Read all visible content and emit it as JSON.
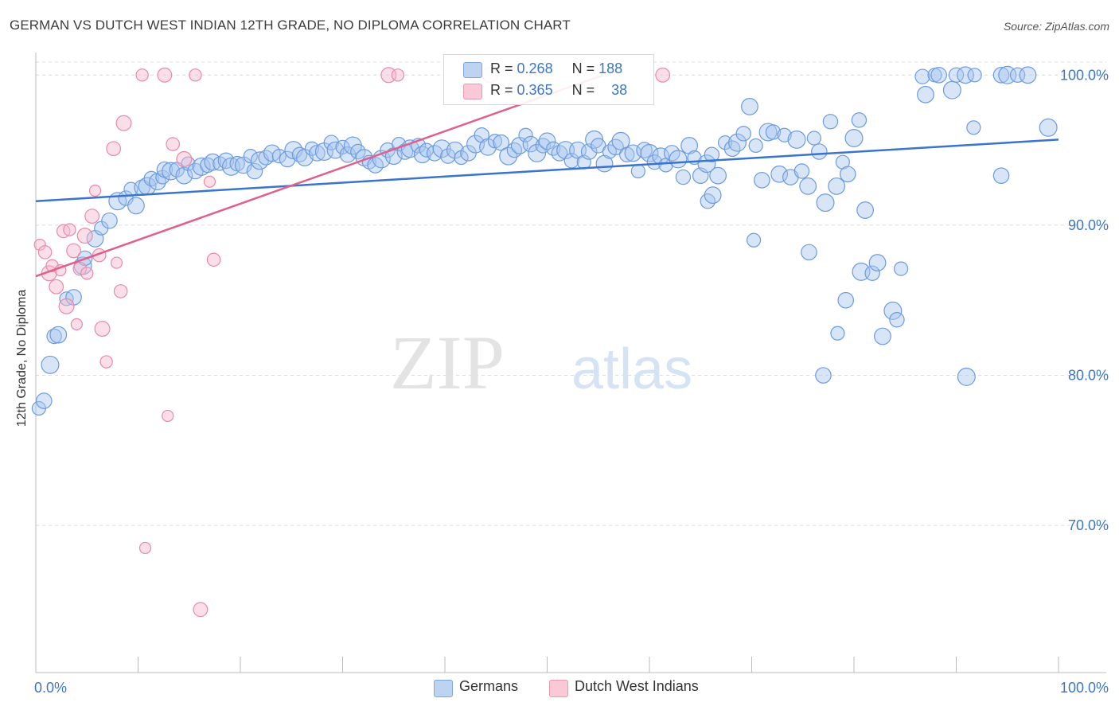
{
  "header": {
    "title": "GERMAN VS DUTCH WEST INDIAN 12TH GRADE, NO DIPLOMA CORRELATION CHART",
    "source": "Source: ZipAtlas.com"
  },
  "watermark": {
    "zip": "ZIP",
    "atlas": "atlas"
  },
  "legend": {
    "rows": [
      {
        "r_label": "R =",
        "r_value": "0.268",
        "n_label": "N =",
        "n_value": "188",
        "color": "#a9c6ee"
      },
      {
        "r_label": "R =",
        "r_value": "0.365",
        "n_label": "N =",
        "n_value": "38",
        "color": "#f6b9cc"
      }
    ]
  },
  "bottom_legend": {
    "germans": "Germans",
    "dutch": "Dutch West Indians"
  },
  "colors": {
    "blue_fill": "#a9c6ee",
    "blue_stroke": "#6b9be0",
    "blue_line": "#3a74cc",
    "pink_fill": "#f6b9cc",
    "pink_stroke": "#e88aa8",
    "pink_line": "#e0608b",
    "axis_text": "#3d76c4"
  },
  "chart_data": {
    "type": "scatter",
    "title": "GERMAN VS DUTCH WEST INDIAN 12TH GRADE, NO DIPLOMA CORRELATION CHART",
    "xlabel": "",
    "ylabel": "12th Grade, No Diploma",
    "xlim": [
      0,
      100
    ],
    "ylim": [
      60.2,
      101.5
    ],
    "x_tick_labels": [
      "0.0%",
      "100.0%"
    ],
    "y_ticks": [
      70,
      80,
      90,
      100
    ],
    "y_tick_labels": [
      "70.0%",
      "80.0%",
      "90.0%",
      "100.0%"
    ],
    "grid": true,
    "legend_position": "top-center",
    "series": [
      {
        "name": "Germans",
        "r": 0.268,
        "n": 188,
        "trend": [
          [
            0,
            91.6
          ],
          [
            100,
            95.7
          ]
        ],
        "points": [
          [
            0.3,
            77.8
          ],
          [
            0.8,
            78.3
          ],
          [
            1.4,
            80.7
          ],
          [
            1.8,
            82.6
          ],
          [
            2.2,
            82.7
          ],
          [
            3.0,
            85.1
          ],
          [
            3.7,
            85.2
          ],
          [
            4.6,
            87.3
          ],
          [
            4.8,
            87.8
          ],
          [
            5.8,
            89.1
          ],
          [
            6.4,
            89.8
          ],
          [
            7.2,
            90.3
          ],
          [
            8.0,
            91.6
          ],
          [
            8.8,
            91.8
          ],
          [
            9.8,
            91.3
          ],
          [
            9.3,
            92.4
          ],
          [
            10.4,
            92.5
          ],
          [
            10.9,
            92.6
          ],
          [
            11.3,
            93.1
          ],
          [
            11.9,
            92.9
          ],
          [
            12.4,
            93.2
          ],
          [
            12.6,
            93.7
          ],
          [
            13.2,
            93.6
          ],
          [
            13.8,
            93.7
          ],
          [
            14.5,
            93.3
          ],
          [
            14.9,
            94.1
          ],
          [
            15.6,
            93.6
          ],
          [
            16.2,
            93.9
          ],
          [
            16.8,
            94.0
          ],
          [
            17.3,
            94.2
          ],
          [
            18.0,
            94.1
          ],
          [
            18.6,
            94.3
          ],
          [
            19.1,
            93.9
          ],
          [
            19.7,
            94.1
          ],
          [
            20.3,
            94.0
          ],
          [
            21.0,
            94.6
          ],
          [
            21.4,
            93.6
          ],
          [
            21.9,
            94.3
          ],
          [
            22.5,
            94.5
          ],
          [
            23.1,
            94.8
          ],
          [
            23.8,
            94.6
          ],
          [
            24.6,
            94.4
          ],
          [
            25.2,
            95.0
          ],
          [
            25.8,
            94.7
          ],
          [
            26.3,
            94.5
          ],
          [
            27.0,
            95.1
          ],
          [
            27.5,
            94.8
          ],
          [
            28.2,
            94.9
          ],
          [
            28.9,
            95.5
          ],
          [
            29.3,
            95.0
          ],
          [
            30.0,
            95.2
          ],
          [
            30.5,
            94.7
          ],
          [
            31.0,
            95.3
          ],
          [
            31.5,
            94.9
          ],
          [
            32.1,
            94.5
          ],
          [
            32.6,
            94.2
          ],
          [
            33.2,
            94.0
          ],
          [
            33.8,
            94.4
          ],
          [
            34.4,
            95.0
          ],
          [
            35.0,
            94.6
          ],
          [
            35.5,
            95.4
          ],
          [
            36.1,
            94.9
          ],
          [
            36.6,
            95.1
          ],
          [
            37.4,
            95.3
          ],
          [
            37.8,
            94.7
          ],
          [
            38.2,
            95.0
          ],
          [
            39.0,
            94.8
          ],
          [
            39.7,
            95.1
          ],
          [
            40.3,
            94.6
          ],
          [
            41.0,
            95.0
          ],
          [
            41.6,
            94.5
          ],
          [
            42.3,
            94.8
          ],
          [
            43.0,
            95.4
          ],
          [
            43.6,
            96.0
          ],
          [
            44.2,
            95.2
          ],
          [
            44.9,
            95.6
          ],
          [
            45.5,
            95.5
          ],
          [
            46.2,
            94.6
          ],
          [
            46.8,
            95.0
          ],
          [
            47.3,
            95.3
          ],
          [
            47.9,
            96.0
          ],
          [
            48.4,
            95.4
          ],
          [
            49.0,
            94.8
          ],
          [
            49.6,
            95.3
          ],
          [
            50.0,
            95.6
          ],
          [
            50.6,
            95.1
          ],
          [
            51.2,
            94.8
          ],
          [
            51.8,
            95.0
          ],
          [
            52.4,
            94.3
          ],
          [
            53.0,
            95.0
          ],
          [
            53.6,
            94.2
          ],
          [
            54.1,
            94.9
          ],
          [
            54.6,
            95.7
          ],
          [
            55.0,
            95.3
          ],
          [
            55.6,
            94.1
          ],
          [
            56.1,
            94.9
          ],
          [
            56.7,
            95.2
          ],
          [
            57.2,
            95.6
          ],
          [
            57.8,
            94.7
          ],
          [
            58.4,
            94.8
          ],
          [
            58.9,
            93.6
          ],
          [
            59.5,
            95.0
          ],
          [
            60.0,
            94.8
          ],
          [
            60.5,
            94.2
          ],
          [
            61.1,
            94.6
          ],
          [
            61.6,
            94.0
          ],
          [
            62.2,
            94.8
          ],
          [
            62.8,
            94.4
          ],
          [
            63.3,
            93.2
          ],
          [
            63.9,
            95.3
          ],
          [
            64.4,
            94.5
          ],
          [
            65.0,
            93.3
          ],
          [
            65.6,
            94.1
          ],
          [
            66.1,
            94.7
          ],
          [
            66.7,
            93.3
          ],
          [
            67.4,
            95.5
          ],
          [
            68.1,
            95.1
          ],
          [
            68.6,
            95.5
          ],
          [
            69.2,
            96.1
          ],
          [
            69.8,
            97.9
          ],
          [
            70.4,
            95.3
          ],
          [
            71.0,
            93.0
          ],
          [
            71.6,
            96.2
          ],
          [
            72.1,
            96.2
          ],
          [
            72.7,
            93.4
          ],
          [
            73.2,
            96.0
          ],
          [
            73.8,
            93.2
          ],
          [
            74.4,
            95.7
          ],
          [
            74.9,
            93.6
          ],
          [
            75.5,
            92.6
          ],
          [
            76.1,
            95.8
          ],
          [
            76.6,
            94.9
          ],
          [
            77.2,
            91.5
          ],
          [
            77.7,
            96.9
          ],
          [
            78.3,
            92.6
          ],
          [
            78.9,
            94.2
          ],
          [
            79.4,
            93.4
          ],
          [
            80.0,
            95.8
          ],
          [
            80.5,
            97.0
          ],
          [
            81.1,
            91.0
          ],
          [
            70.2,
            89.0
          ],
          [
            75.6,
            88.2
          ],
          [
            80.7,
            86.9
          ],
          [
            81.8,
            86.8
          ],
          [
            82.3,
            87.5
          ],
          [
            84.6,
            87.1
          ],
          [
            79.2,
            85.0
          ],
          [
            83.8,
            84.3
          ],
          [
            84.2,
            83.7
          ],
          [
            82.8,
            82.6
          ],
          [
            78.4,
            82.8
          ],
          [
            77.0,
            80.0
          ],
          [
            91.0,
            79.9
          ],
          [
            86.7,
            99.9
          ],
          [
            87.0,
            98.7
          ],
          [
            87.9,
            100.0
          ],
          [
            88.3,
            100.0
          ],
          [
            89.6,
            99.0
          ],
          [
            90.0,
            100.0
          ],
          [
            90.9,
            100.0
          ],
          [
            91.8,
            100.0
          ],
          [
            94.4,
            100.0
          ],
          [
            95.0,
            100.0
          ],
          [
            96.0,
            100.0
          ],
          [
            97.0,
            100.0
          ],
          [
            91.7,
            96.5
          ],
          [
            94.4,
            93.3
          ],
          [
            99.0,
            96.5
          ],
          [
            65.7,
            91.6
          ],
          [
            66.2,
            92.0
          ]
        ]
      },
      {
        "name": "Dutch West Indians",
        "r": 0.365,
        "n": 38,
        "trend": [
          [
            0,
            86.6
          ],
          [
            55.5,
            100.0
          ]
        ],
        "points": [
          [
            0.4,
            88.7
          ],
          [
            0.9,
            88.2
          ],
          [
            1.3,
            86.8
          ],
          [
            1.6,
            87.3
          ],
          [
            2.0,
            85.9
          ],
          [
            2.4,
            87.0
          ],
          [
            2.7,
            89.6
          ],
          [
            3.0,
            84.6
          ],
          [
            3.3,
            89.7
          ],
          [
            3.7,
            88.3
          ],
          [
            4.0,
            83.4
          ],
          [
            4.3,
            87.1
          ],
          [
            4.8,
            89.3
          ],
          [
            5.0,
            86.8
          ],
          [
            5.5,
            90.6
          ],
          [
            5.8,
            92.3
          ],
          [
            6.2,
            88.0
          ],
          [
            6.5,
            83.1
          ],
          [
            6.9,
            80.9
          ],
          [
            7.6,
            95.1
          ],
          [
            7.9,
            87.5
          ],
          [
            8.3,
            85.6
          ],
          [
            8.6,
            96.8
          ],
          [
            10.4,
            100.0
          ],
          [
            12.6,
            100.0
          ],
          [
            12.9,
            77.3
          ],
          [
            13.4,
            95.4
          ],
          [
            14.5,
            94.4
          ],
          [
            15.6,
            100.0
          ],
          [
            16.1,
            64.4
          ],
          [
            17.0,
            92.9
          ],
          [
            17.4,
            87.7
          ],
          [
            34.5,
            100.0
          ],
          [
            35.4,
            100.0
          ],
          [
            61.3,
            100.0
          ],
          [
            10.7,
            68.5
          ],
          [
            43.0,
            100.0
          ],
          [
            44.4,
            100.0
          ]
        ]
      }
    ]
  }
}
